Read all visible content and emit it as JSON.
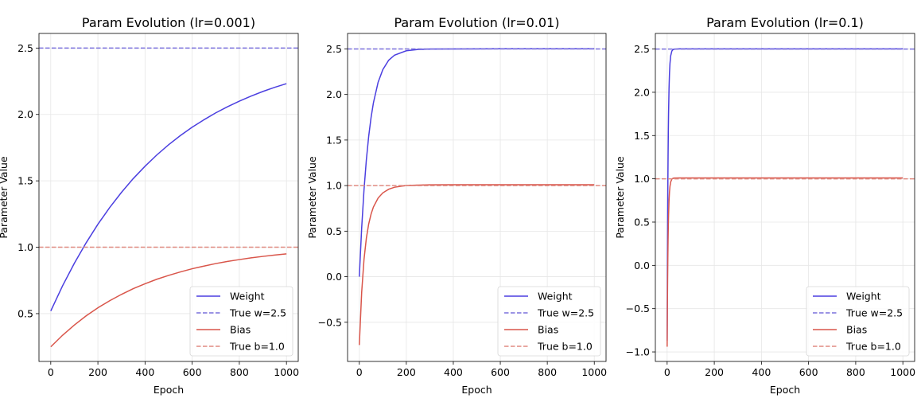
{
  "colors": {
    "weight": "#4b3fe0",
    "true_w": "#7a70dc",
    "bias": "#d9554a",
    "true_b": "#e08a80",
    "grid": "#e6e6e6"
  },
  "chart_data": [
    {
      "type": "line",
      "title": "Param Evolution (lr=0.001)",
      "xlabel": "Epoch",
      "ylabel": "Parameter Value",
      "xlim": [
        -50,
        1050
      ],
      "ylim": [
        0.14,
        2.61
      ],
      "xticks": [
        0,
        200,
        400,
        600,
        800,
        1000
      ],
      "yticks": [
        0.5,
        1.0,
        1.5,
        2.0,
        2.5
      ],
      "ytick_labels": [
        "0.5",
        "1.0",
        "1.5",
        "2.0",
        "2.5"
      ],
      "grid": true,
      "legend": "lower-right",
      "x": [
        0,
        50,
        100,
        150,
        200,
        250,
        300,
        350,
        400,
        450,
        500,
        550,
        600,
        650,
        700,
        750,
        800,
        850,
        900,
        950,
        1000
      ],
      "series": [
        {
          "name": "Weight",
          "style": "solid",
          "color_key": "weight",
          "values": [
            0.52,
            0.709,
            0.879,
            1.033,
            1.173,
            1.299,
            1.413,
            1.517,
            1.61,
            1.695,
            1.772,
            1.841,
            1.904,
            1.96,
            2.012,
            2.058,
            2.1,
            2.138,
            2.173,
            2.204,
            2.232
          ]
        },
        {
          "name": "True w=2.5",
          "style": "dashed",
          "color_key": "true_w",
          "constant": 2.5
        },
        {
          "name": "Bias",
          "style": "solid",
          "color_key": "bias",
          "values": [
            0.25,
            0.337,
            0.414,
            0.483,
            0.544,
            0.597,
            0.645,
            0.688,
            0.725,
            0.759,
            0.788,
            0.814,
            0.838,
            0.858,
            0.877,
            0.893,
            0.907,
            0.92,
            0.931,
            0.941,
            0.95
          ]
        },
        {
          "name": "True b=1.0",
          "style": "dashed",
          "color_key": "true_b",
          "constant": 1.0
        }
      ]
    },
    {
      "type": "line",
      "title": "Param Evolution (lr=0.01)",
      "xlabel": "Epoch",
      "ylabel": "Parameter Value",
      "xlim": [
        -50,
        1050
      ],
      "ylim": [
        -0.93,
        2.67
      ],
      "xticks": [
        0,
        200,
        400,
        600,
        800,
        1000
      ],
      "yticks": [
        -0.5,
        0.0,
        0.5,
        1.0,
        1.5,
        2.0,
        2.5
      ],
      "ytick_labels": [
        "−0.5",
        "0.0",
        "0.5",
        "1.0",
        "1.5",
        "2.0",
        "2.5"
      ],
      "grid": true,
      "legend": "lower-right",
      "x": [
        0,
        10,
        20,
        30,
        40,
        50,
        60,
        80,
        100,
        125,
        150,
        200,
        250,
        300,
        400,
        600,
        800,
        1000
      ],
      "series": [
        {
          "name": "Weight",
          "style": "solid",
          "color_key": "weight",
          "values": [
            0.0,
            0.533,
            0.953,
            1.283,
            1.543,
            1.747,
            1.908,
            2.134,
            2.273,
            2.376,
            2.432,
            2.48,
            2.494,
            2.498,
            2.5,
            2.502,
            2.502,
            2.502
          ]
        },
        {
          "name": "True w=2.5",
          "style": "dashed",
          "color_key": "true_w",
          "constant": 2.5
        },
        {
          "name": "Bias",
          "style": "solid",
          "color_key": "bias",
          "values": [
            -0.75,
            -0.173,
            0.19,
            0.423,
            0.579,
            0.687,
            0.765,
            0.863,
            0.92,
            0.96,
            0.982,
            1.001,
            1.006,
            1.009,
            1.01,
            1.01,
            1.01,
            1.01
          ]
        },
        {
          "name": "True b=1.0",
          "style": "dashed",
          "color_key": "true_b",
          "constant": 1.0
        }
      ]
    },
    {
      "type": "line",
      "title": "Param Evolution (lr=0.1)",
      "xlabel": "Epoch",
      "ylabel": "Parameter Value",
      "xlim": [
        -50,
        1050
      ],
      "ylim": [
        -1.11,
        2.68
      ],
      "xticks": [
        0,
        200,
        400,
        600,
        800,
        1000
      ],
      "yticks": [
        -1.0,
        -0.5,
        0.0,
        0.5,
        1.0,
        1.5,
        2.0,
        2.5
      ],
      "ytick_labels": [
        "−1.0",
        "−0.5",
        "0.0",
        "0.5",
        "1.0",
        "1.5",
        "2.0",
        "2.5"
      ],
      "grid": true,
      "legend": "lower-right",
      "x": [
        0,
        1,
        2,
        3,
        4,
        5,
        6,
        8,
        10,
        12,
        15,
        20,
        25,
        30,
        50,
        100,
        200,
        400,
        600,
        800,
        1000
      ],
      "series": [
        {
          "name": "Weight",
          "style": "solid",
          "color_key": "weight",
          "values": [
            -0.87,
            -0.125,
            0.456,
            0.908,
            1.26,
            1.534,
            1.748,
            2.044,
            2.223,
            2.332,
            2.421,
            2.477,
            2.494,
            2.498,
            2.502,
            2.502,
            2.502,
            2.502,
            2.502,
            2.502,
            2.502
          ]
        },
        {
          "name": "True w=2.5",
          "style": "dashed",
          "color_key": "true_w",
          "constant": 2.5
        },
        {
          "name": "Bias",
          "style": "solid",
          "color_key": "bias",
          "values": [
            -0.94,
            -0.509,
            -0.173,
            0.089,
            0.293,
            0.451,
            0.575,
            0.746,
            0.85,
            0.913,
            0.964,
            0.997,
            1.006,
            1.009,
            1.01,
            1.01,
            1.01,
            1.01,
            1.01,
            1.01,
            1.01
          ]
        },
        {
          "name": "True b=1.0",
          "style": "dashed",
          "color_key": "true_b",
          "constant": 1.0
        }
      ]
    }
  ]
}
